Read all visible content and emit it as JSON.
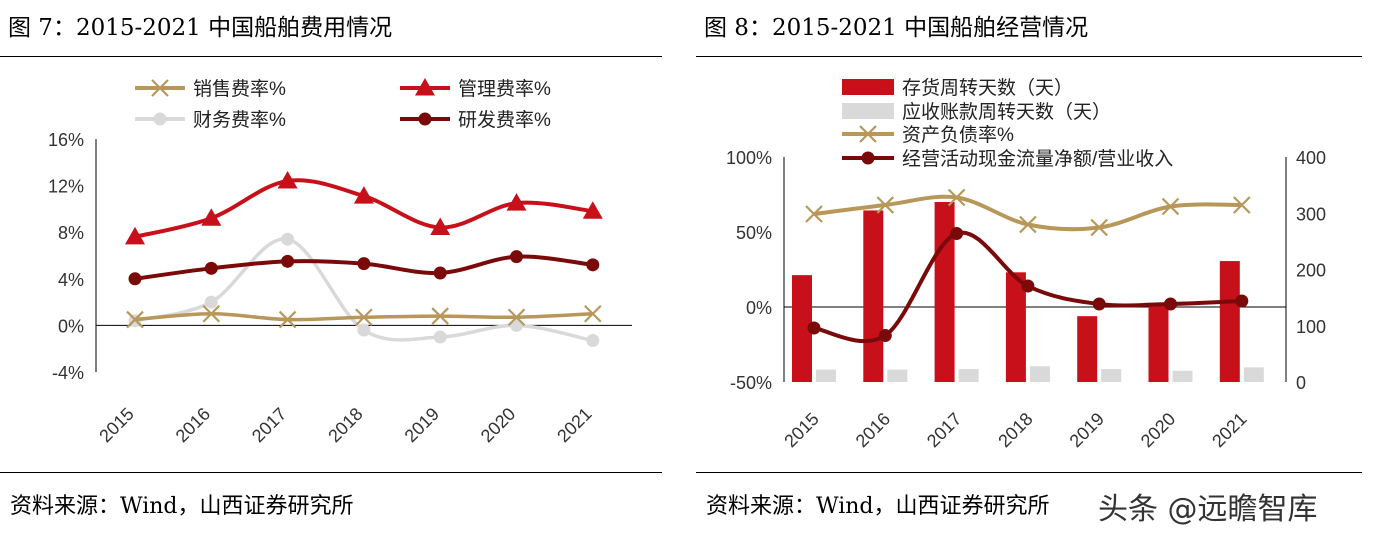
{
  "left": {
    "title": "图 7：2015-2021 中国船舶费用情况",
    "source": "资料来源：Wind，山西证券研究所"
  },
  "right": {
    "title": "图 8：2015-2021 中国船舶经营情况",
    "source": "资料来源：Wind，山西证券研究所"
  },
  "watermark": "头条 @远瞻智库",
  "colors": {
    "gold": "#B8975A",
    "red": "#C8101A",
    "gray": "#D9D9D9",
    "darkred": "#7A0A0A"
  },
  "chart_data": [
    {
      "type": "line",
      "categories": [
        "2015",
        "2016",
        "2017",
        "2018",
        "2019",
        "2020",
        "2021"
      ],
      "y_ticks": [
        "16%",
        "12%",
        "8%",
        "4%",
        "0%",
        "-4%"
      ],
      "ylim": [
        -4,
        16
      ],
      "series": [
        {
          "name": "销售费率%",
          "marker": "x",
          "color": "#B8975A",
          "values": [
            0.5,
            1.0,
            0.5,
            0.7,
            0.8,
            0.7,
            1.0
          ]
        },
        {
          "name": "管理费率%",
          "marker": "triangle",
          "color": "#C8101A",
          "values": [
            7.6,
            9.2,
            12.4,
            11.1,
            8.4,
            10.5,
            9.8
          ]
        },
        {
          "name": "财务费率%",
          "marker": "circle",
          "color": "#D9D9D9",
          "values": [
            0.4,
            2.0,
            7.4,
            -0.4,
            -1.0,
            0.0,
            -1.3
          ]
        },
        {
          "name": "研发费率%",
          "marker": "circle",
          "color": "#7A0A0A",
          "values": [
            4.0,
            4.9,
            5.5,
            5.3,
            4.5,
            5.9,
            5.2
          ]
        }
      ]
    },
    {
      "type": "bar",
      "categories": [
        "2015",
        "2016",
        "2017",
        "2018",
        "2019",
        "2020",
        "2021"
      ],
      "y_ticks_left": [
        "100%",
        "50%",
        "0%",
        "-50%"
      ],
      "y_ticks_right": [
        "400",
        "300",
        "200",
        "100",
        "0"
      ],
      "ylim_left": [
        -50,
        100
      ],
      "ylim_right": [
        0,
        400
      ],
      "series": [
        {
          "name": "存货周转天数（天）",
          "kind": "bar",
          "axis": "right",
          "color": "#C8101A",
          "values": [
            190,
            305,
            320,
            195,
            117,
            140,
            215
          ]
        },
        {
          "name": "应收账款周转天数（天）",
          "kind": "bar",
          "axis": "right",
          "color": "#D9D9D9",
          "values": [
            22,
            22,
            23,
            28,
            23,
            20,
            26
          ]
        },
        {
          "name": "资产负债率%",
          "kind": "line",
          "marker": "x",
          "axis": "left",
          "color": "#B8975A",
          "values": [
            62,
            68,
            73,
            55,
            53,
            67,
            68
          ]
        },
        {
          "name": "经营活动现金流量净额/营业收入",
          "kind": "line",
          "marker": "circle",
          "axis": "left",
          "color": "#7A0A0A",
          "values": [
            -14,
            -19,
            49,
            14,
            2,
            2,
            4
          ]
        }
      ]
    }
  ]
}
